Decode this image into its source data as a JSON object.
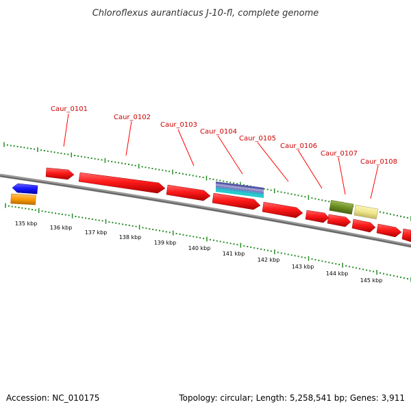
{
  "title": "Chloroflexus aurantiacus J-10-fl, complete genome",
  "footer": {
    "accession": "Accession: NC_010175",
    "info": "Topology: circular; Length: 5,258,541 bp; Genes: 3,911"
  },
  "colors": {
    "label": "#cc0000",
    "callout_line": "#ff0000",
    "ruler_dots": "#228b22",
    "backbone": "#777777",
    "forward_gene": "#ff0000",
    "reverse_gene": "#0000ff",
    "orange_feature": "#ff9900",
    "green_feature": "#6b8e23",
    "yellow_feature": "#f0e68c",
    "rna_stack": [
      "#5555aa",
      "#9999cc",
      "#33aacc",
      "#22cccc"
    ]
  },
  "gene_labels": [
    {
      "id": "g1",
      "text": "Caur_0101"
    },
    {
      "id": "g2",
      "text": "Caur_0102"
    },
    {
      "id": "g3",
      "text": "Caur_0103"
    },
    {
      "id": "g4",
      "text": "Caur_0104"
    },
    {
      "id": "g5",
      "text": "Caur_0105"
    },
    {
      "id": "g6",
      "text": "Caur_0106"
    },
    {
      "id": "g7",
      "text": "Caur_0107"
    },
    {
      "id": "g8",
      "text": "Caur_0108"
    }
  ],
  "kbp_labels": [
    "135 kbp",
    "136 kbp",
    "137 kbp",
    "138 kbp",
    "139 kbp",
    "140 kbp",
    "141 kbp",
    "142 kbp",
    "143 kbp",
    "144 kbp",
    "145 kbp"
  ]
}
